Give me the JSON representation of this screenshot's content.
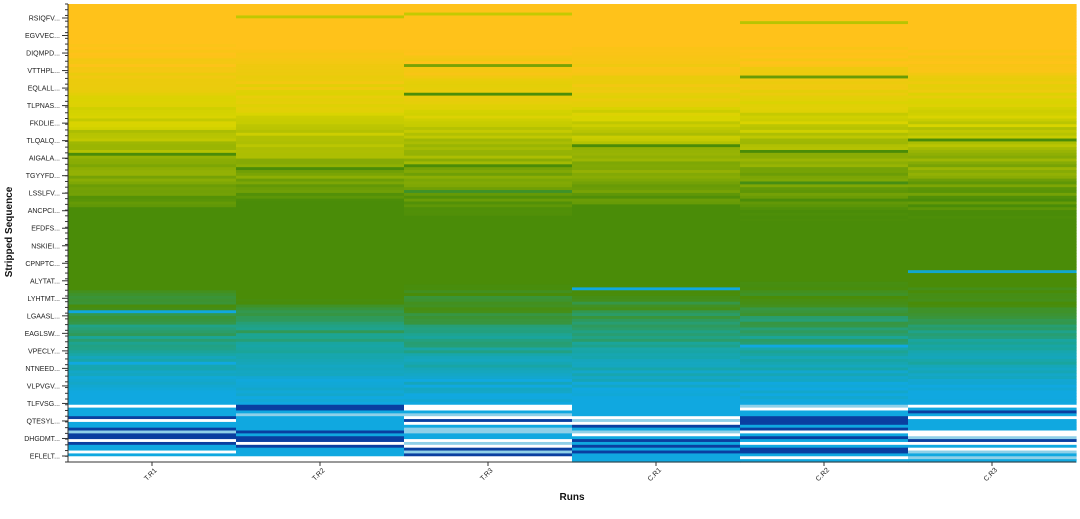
{
  "chart_data": {
    "type": "heatmap",
    "title": "",
    "xlabel": "Runs",
    "ylabel": "Stripped Sequence",
    "x_categories": [
      "T.R1",
      "T.R2",
      "T.R3",
      "C.R1",
      "C.R2",
      "C.R3"
    ],
    "y_tick_labels": [
      "RSIQFV...",
      "EGVVEC...",
      "DIQMPD...",
      "VTTHPL...",
      "EQLALL...",
      "TLPNAS...",
      "FKDLIE...",
      "TLQALQ...",
      "AIGALA...",
      "TGYYFD...",
      "LSSLFV...",
      "ANCPCI...",
      "EFDFS...",
      "NSKIEI...",
      "CPNPTC...",
      "ALYTAT...",
      "LYHTMT...",
      "LGAASL...",
      "EAGLSW...",
      "VPECLY...",
      "NTNEED...",
      "VLPVGV...",
      "TLFVSG...",
      "QTESYL...",
      "DHGDMT...",
      "EFLELT..."
    ],
    "row_count": 160,
    "color_scale": {
      "high": "#FFC21A",
      "upper_mid": "#D8D400",
      "mid": "#4A8C08",
      "lower_mid": "#1AA59A",
      "low": "#10A8E0",
      "lowest": "#0A3FA0",
      "missing": "#FFFFFF"
    },
    "legend": "none",
    "grid": false
  }
}
